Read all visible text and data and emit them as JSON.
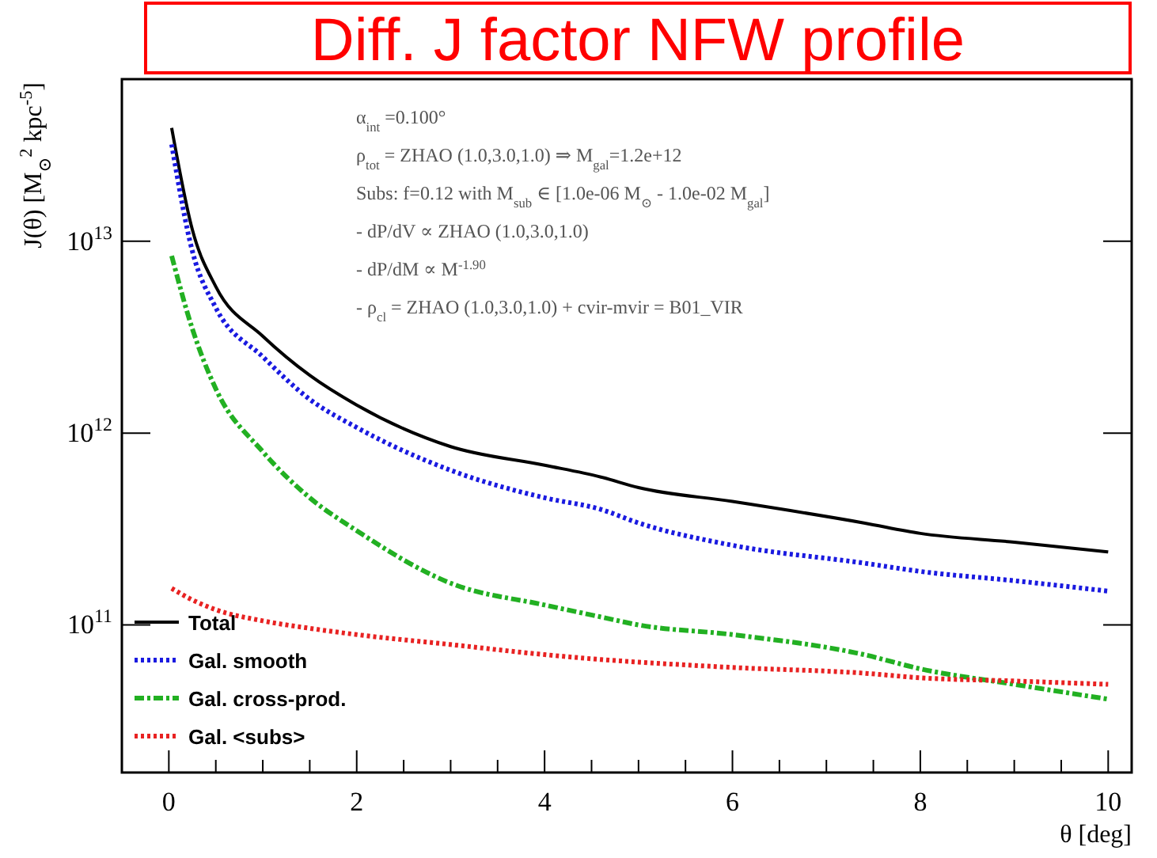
{
  "chart_data": {
    "type": "line",
    "title": "Diff. J factor NFW profile",
    "xlabel": "θ [deg]",
    "ylabel": "J(θ) [M$_{⊙}$$^{2}$ kpc$^{-5}$]",
    "log": "y",
    "xlim": [
      -0.5,
      10.25
    ],
    "ylim": [
      17000000000.0,
      70000000000000.0
    ],
    "xticks": [
      0,
      {
        "value": 0.5,
        "label": null
      },
      {
        "value": 1,
        "label": null
      },
      {
        "value": 1.5,
        "label": null
      },
      2,
      {
        "value": 2.5,
        "label": null
      },
      {
        "value": 3,
        "label": null
      },
      {
        "value": 3.5,
        "label": null
      },
      4,
      {
        "value": 4.5,
        "label": null
      },
      {
        "value": 5,
        "label": null
      },
      {
        "value": 5.5,
        "label": null
      },
      6,
      {
        "value": 6.5,
        "label": null
      },
      {
        "value": 7,
        "label": null
      },
      {
        "value": 7.5,
        "label": null
      },
      8,
      {
        "value": 8.5,
        "label": null
      },
      {
        "value": 9,
        "label": null
      },
      {
        "value": 9.5,
        "label": null
      },
      10
    ],
    "yticks": [
      {
        "value": 100000000000.0,
        "label": "10$^{11}$"
      },
      {
        "value": 1000000000000.0,
        "label": "10$^{12}$"
      },
      {
        "value": 10000000000000.0,
        "label": "10$^{13}$"
      }
    ],
    "x": [
      0.03,
      0.25,
      0.5,
      1,
      1.5,
      2,
      3,
      4,
      4.6,
      5,
      6,
      7.4,
      8,
      9,
      10
    ],
    "legend": "bottom left",
    "grid": false,
    "series": [
      {
        "name": "Total",
        "color": "#000000",
        "line_style": "solid",
        "values": [
          39000000000000.0,
          11500000000000.0,
          5800000000000.0,
          3200000000000.0,
          2000000000000.0,
          1400000000000.0,
          850000000000.0,
          680000000000.0,
          590000000000.0,
          520000000000.0,
          440000000000.0,
          340000000000.0,
          300000000000.0,
          270000000000.0,
          240000000000.0
        ]
      },
      {
        "name": "Gal. smooth",
        "color": "#1a1ae0",
        "line_style": "dotted",
        "values": [
          32000000000000.0,
          8900000000000.0,
          4500000000000.0,
          2500000000000.0,
          1500000000000.0,
          1070000000000.0,
          640000000000.0,
          460000000000.0,
          400000000000.0,
          340000000000.0,
          260000000000.0,
          210000000000.0,
          190000000000.0,
          170000000000.0,
          150000000000.0
        ]
      },
      {
        "name": "Gal. cross-prod.",
        "color": "#22b022",
        "line_style": "dashed",
        "values": [
          8400000000000.0,
          3500000000000.0,
          1700000000000.0,
          800000000000.0,
          460000000000.0,
          310000000000.0,
          165000000000.0,
          127000000000.0,
          110000000000.0,
          100000000000.0,
          89000000000.0,
          70000000000.0,
          59000000000.0,
          49000000000.0,
          41000000000.0
        ]
      },
      {
        "name": "Gal. <subs>",
        "color": "#e82222",
        "line_style": "dotted",
        "values": [
          155000000000.0,
          135000000000.0,
          120000000000.0,
          105000000000.0,
          96000000000.0,
          89000000000.0,
          79000000000.0,
          70000000000.0,
          66000000000.0,
          64000000000.0,
          60000000000.0,
          56000000000.0,
          53000000000.0,
          51000000000.0,
          49000000000.0
        ]
      }
    ],
    "annotations": [
      "α$_{int}$ =0.100°",
      "ρ$_{tot}$ = ZHAO (1.0,3.0,1.0) ⇒ M$_{gal}$=1.2e+12",
      "Subs: f=0.12 with M$_{sub}$ ∈ [1.0e-06 M$_{⊙}$ - 1.0e-02 M$_{gal}$]",
      "- dP/dV ∝ ZHAO (1.0,3.0,1.0)",
      "- dP/dM ∝ M$^{-1.90}$",
      "- ρ$_{cl}$ = ZHAO (1.0,3.0,1.0) + cvir-mvir = B01_VIR"
    ]
  }
}
